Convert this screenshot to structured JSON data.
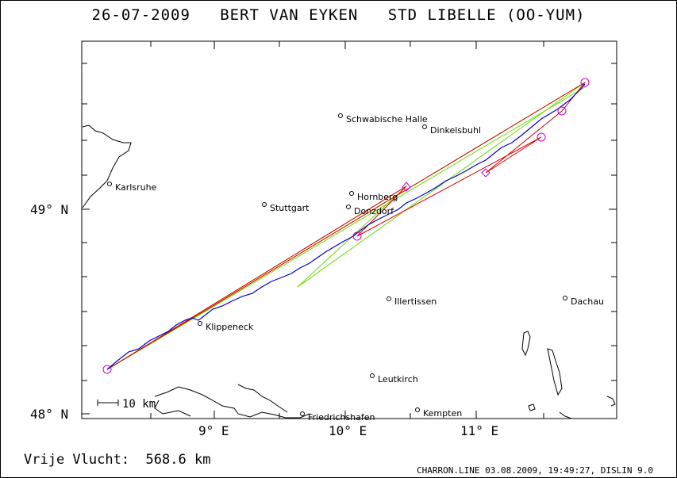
{
  "header": {
    "date": "26-07-2009",
    "pilot": "BERT VAN EYKEN",
    "glider": "STD LIBELLE (OO-YUM)"
  },
  "footer": {
    "distance_label": "Vrije Vlucht:",
    "distance_value": "568.6 km",
    "credit": "CHARRON.LINE 03.08.2009, 19:49:27, DISLIN 9.0"
  },
  "scale_bar": {
    "label": "10 km"
  },
  "axes": {
    "lat_labels": [
      "49° N",
      "48° N"
    ],
    "lon_labels": [
      "9° E",
      "10° E",
      "11° E"
    ]
  },
  "cities": [
    {
      "name": "Schwabische Halle"
    },
    {
      "name": "Dinkelsbuhl"
    },
    {
      "name": "Karlsruhe"
    },
    {
      "name": "Hornberg"
    },
    {
      "name": "Stuttgart"
    },
    {
      "name": "Donzdorf"
    },
    {
      "name": "Illertissen"
    },
    {
      "name": "Dachau"
    },
    {
      "name": "Klippeneck"
    },
    {
      "name": "Leutkirch"
    },
    {
      "name": "Friedrichshafen"
    },
    {
      "name": "Kempten"
    }
  ],
  "colors": {
    "track": "#0000cc",
    "task_line": "#dd0000",
    "sector_line": "#66dd00",
    "turnpoint": "#cc00cc"
  }
}
